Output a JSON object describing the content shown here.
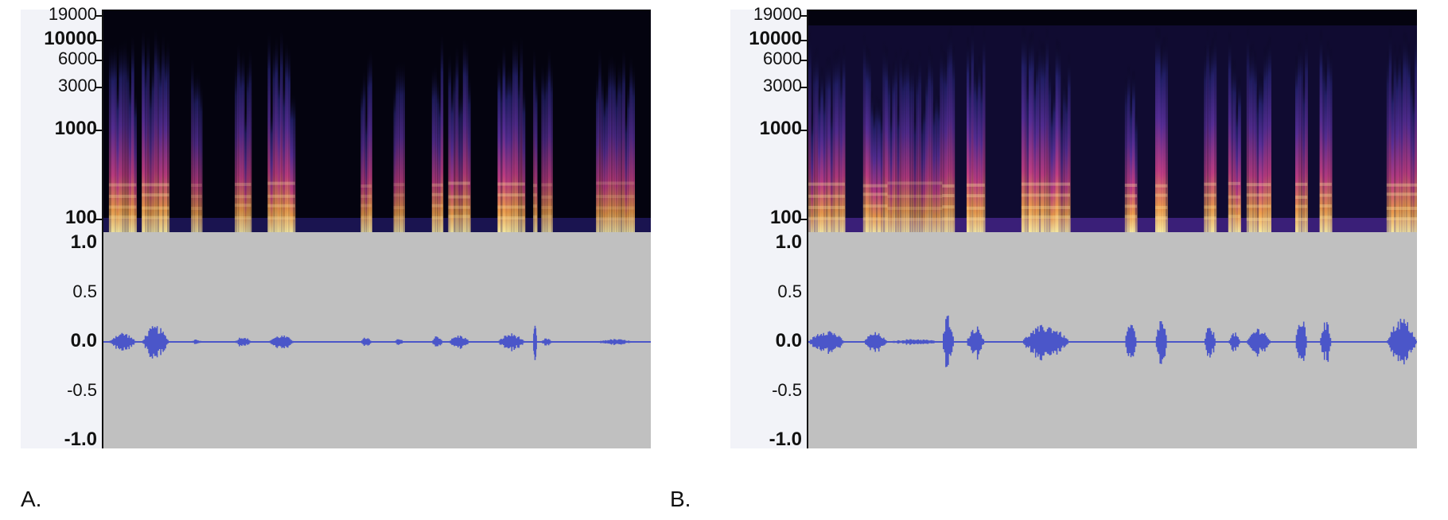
{
  "chart_data": [
    {
      "type": "spectrogram+waveform",
      "panel_label": "A.",
      "freq_ticks": [
        {
          "label": "19000",
          "value": 19000
        },
        {
          "label": "10000",
          "value": 10000
        },
        {
          "label": "6000",
          "value": 6000
        },
        {
          "label": "3000",
          "value": 3000
        },
        {
          "label": "1000",
          "value": 1000
        },
        {
          "label": "100",
          "value": 100
        }
      ],
      "amp_ticks": [
        {
          "label": "1.0",
          "value": 1.0
        },
        {
          "label": "0.5",
          "value": 0.5
        },
        {
          "label": "0.0",
          "value": 0.0
        },
        {
          "label": "-0.5",
          "value": -0.5
        },
        {
          "label": "-1.0",
          "value": -1.0
        }
      ],
      "ylim_amplitude": [
        -1.0,
        1.0
      ],
      "bursts": [
        {
          "start": 0.01,
          "end": 0.06,
          "amp": 0.1,
          "level": 0.8
        },
        {
          "start": 0.07,
          "end": 0.12,
          "amp": 0.17,
          "level": 0.9
        },
        {
          "start": 0.16,
          "end": 0.18,
          "amp": 0.03,
          "level": 0.5
        },
        {
          "start": 0.24,
          "end": 0.27,
          "amp": 0.06,
          "level": 0.7
        },
        {
          "start": 0.3,
          "end": 0.35,
          "amp": 0.07,
          "level": 0.85
        },
        {
          "start": 0.47,
          "end": 0.49,
          "amp": 0.05,
          "level": 0.55
        },
        {
          "start": 0.53,
          "end": 0.55,
          "amp": 0.03,
          "level": 0.45
        },
        {
          "start": 0.6,
          "end": 0.62,
          "amp": 0.07,
          "level": 0.75
        },
        {
          "start": 0.63,
          "end": 0.67,
          "amp": 0.07,
          "level": 0.85
        },
        {
          "start": 0.72,
          "end": 0.77,
          "amp": 0.09,
          "level": 0.9
        },
        {
          "start": 0.8,
          "end": 0.82,
          "amp": 0.04,
          "level": 0.5
        },
        {
          "start": 0.9,
          "end": 0.97,
          "amp": 0.03,
          "level": 0.5
        },
        {
          "start": 0.785,
          "end": 0.792,
          "amp": 0.17,
          "level": 0.6
        }
      ]
    },
    {
      "type": "spectrogram+waveform",
      "panel_label": "B.",
      "freq_ticks": [
        {
          "label": "19000",
          "value": 19000
        },
        {
          "label": "10000",
          "value": 10000
        },
        {
          "label": "6000",
          "value": 6000
        },
        {
          "label": "3000",
          "value": 3000
        },
        {
          "label": "1000",
          "value": 1000
        },
        {
          "label": "100",
          "value": 100
        }
      ],
      "amp_ticks": [
        {
          "label": "1.0",
          "value": 1.0
        },
        {
          "label": "0.5",
          "value": 0.5
        },
        {
          "label": "0.0",
          "value": 0.0
        },
        {
          "label": "-0.5",
          "value": -0.5
        },
        {
          "label": "-1.0",
          "value": -1.0
        }
      ],
      "ylim_amplitude": [
        -1.0,
        1.0
      ],
      "bursts": [
        {
          "start": 0.0,
          "end": 0.06,
          "amp": 0.13,
          "level": 0.9
        },
        {
          "start": 0.09,
          "end": 0.13,
          "amp": 0.1,
          "level": 0.85
        },
        {
          "start": 0.13,
          "end": 0.22,
          "amp": 0.03,
          "level": 0.6
        },
        {
          "start": 0.22,
          "end": 0.24,
          "amp": 0.3,
          "level": 0.95
        },
        {
          "start": 0.26,
          "end": 0.29,
          "amp": 0.17,
          "level": 1.0
        },
        {
          "start": 0.35,
          "end": 0.43,
          "amp": 0.18,
          "level": 0.95
        },
        {
          "start": 0.52,
          "end": 0.54,
          "amp": 0.2,
          "level": 0.95
        },
        {
          "start": 0.57,
          "end": 0.59,
          "amp": 0.25,
          "level": 0.9
        },
        {
          "start": 0.65,
          "end": 0.67,
          "amp": 0.17,
          "level": 0.9
        },
        {
          "start": 0.69,
          "end": 0.71,
          "amp": 0.1,
          "level": 0.8
        },
        {
          "start": 0.72,
          "end": 0.76,
          "amp": 0.15,
          "level": 0.95
        },
        {
          "start": 0.8,
          "end": 0.82,
          "amp": 0.26,
          "level": 0.9
        },
        {
          "start": 0.84,
          "end": 0.86,
          "amp": 0.22,
          "level": 0.9
        },
        {
          "start": 0.95,
          "end": 1.0,
          "amp": 0.25,
          "level": 0.95
        }
      ]
    }
  ]
}
